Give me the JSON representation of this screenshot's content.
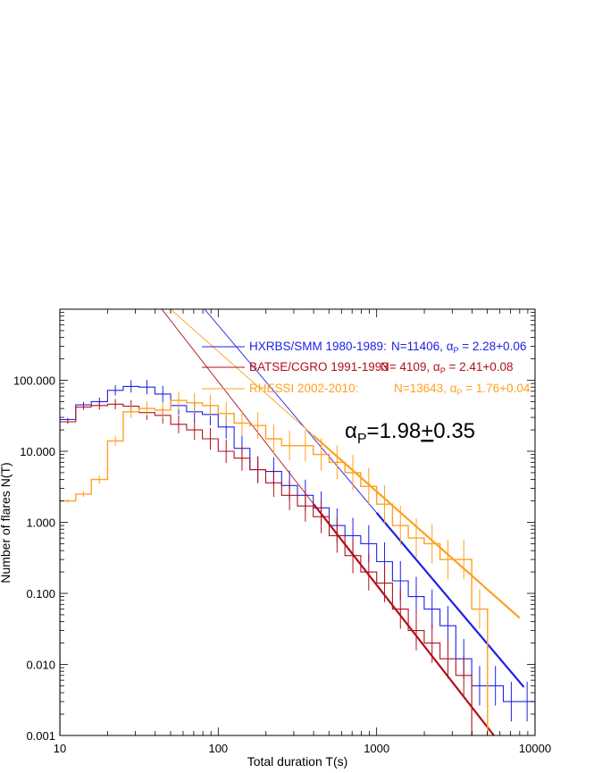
{
  "chart_data": {
    "type": "line",
    "title": "",
    "xlabel": "Total duration  T(s)",
    "ylabel": "Number of flares N(T)",
    "xscale": "log",
    "yscale": "log",
    "xlim": [
      10,
      10000
    ],
    "ylim": [
      0.001,
      1000
    ],
    "grid": false,
    "legend_position": "top-right",
    "x_ticks": [
      {
        "value": 10,
        "label": "10"
      },
      {
        "value": 100,
        "label": "100"
      },
      {
        "value": 1000,
        "label": "1000"
      },
      {
        "value": 10000,
        "label": "10000"
      }
    ],
    "y_ticks": [
      {
        "value": 0.001,
        "label": "0.001"
      },
      {
        "value": 0.01,
        "label": "0.010"
      },
      {
        "value": 0.1,
        "label": "0.100"
      },
      {
        "value": 1,
        "label": "1.000"
      },
      {
        "value": 10,
        "label": "10.000"
      },
      {
        "value": 100,
        "label": "100.000"
      }
    ],
    "annotation": {
      "symbol": "α",
      "subscript": "P",
      "text": "=1.98",
      "pm": "+",
      "pm_value": "0.35"
    },
    "series": [
      {
        "name": "HXRBS/SMM 1980-1989:",
        "stats_text": "N=11406,",
        "alpha_label": "α",
        "alpha_sub": "P",
        "alpha_value": " = 2.28+0.06",
        "color": "#2020e8",
        "bin_edges": [
          10,
          12.6,
          15.8,
          20,
          25.1,
          31.6,
          39.8,
          50.1,
          63.1,
          79.4,
          100,
          125.9,
          158.5,
          199.5,
          251.2,
          316.2,
          398.1,
          501.2,
          631,
          794.3,
          1000,
          1258.9,
          1584.9,
          1995.3,
          2511.9,
          3162.3,
          3981.1,
          5011.9,
          6309.6,
          7943.3,
          10000
        ],
        "values": [
          28,
          45,
          50,
          72,
          82,
          80,
          64,
          44,
          36,
          33,
          22,
          11,
          5.5,
          5.2,
          3.3,
          2.4,
          1.6,
          0.9,
          0.65,
          0.5,
          0.28,
          0.15,
          0.09,
          0.06,
          0.035,
          0.012,
          0.005,
          0.005,
          0.003,
          0.003
        ],
        "fit": {
          "x1": 82,
          "y1": 1000,
          "x2": 8500,
          "y2": 0.0048,
          "emphasis_from": 1000
        }
      },
      {
        "name": "BATSE/CGRO 1991-1993",
        "stats_text": "N= 4109,",
        "alpha_label": "α",
        "alpha_sub": "P",
        "alpha_value": " = 2.41+0.08",
        "color": "#b0101c",
        "bin_edges": [
          10,
          12.6,
          15.8,
          20,
          25.1,
          31.6,
          39.8,
          50.1,
          63.1,
          79.4,
          100,
          125.9,
          158.5,
          199.5,
          251.2,
          316.2,
          398.1,
          501.2,
          631,
          794.3,
          1000,
          1258.9,
          1584.9,
          1995.3,
          2511.9,
          3162.3,
          3981.1
        ],
        "values": [
          26,
          42,
          44,
          46,
          43,
          35,
          32,
          24,
          20,
          15,
          10,
          8,
          5.5,
          3.6,
          2.4,
          1.7,
          1.2,
          0.65,
          0.34,
          0.2,
          0.14,
          0.06,
          0.03,
          0.02,
          0.012,
          0.007
        ],
        "fit": {
          "x1": 44,
          "y1": 1000,
          "x2": 5500,
          "y2": 0.001,
          "emphasis_from": 400
        }
      },
      {
        "name": "RHESSI 2002-2010:",
        "stats_text": "N=13643,",
        "alpha_label": "α",
        "alpha_sub": "P",
        "alpha_value": " = 1.76+0.04",
        "color": "#ffa020",
        "bin_edges": [
          10,
          12.6,
          15.8,
          20,
          25.1,
          31.6,
          39.8,
          50.1,
          63.1,
          79.4,
          100,
          125.9,
          158.5,
          199.5,
          251.2,
          316.2,
          398.1,
          501.2,
          631,
          794.3,
          1000,
          1258.9,
          1584.9,
          1995.3,
          2511.9,
          3162.3,
          3981.1,
          5011.9
        ],
        "values": [
          2,
          2.5,
          4,
          14,
          36,
          40,
          38,
          52,
          48,
          44,
          34,
          25,
          23,
          15,
          12,
          12,
          9,
          7,
          5,
          3.2,
          1.8,
          0.9,
          0.6,
          0.5,
          0.3,
          0.3,
          0.06
        ],
        "fit": {
          "x1": 50,
          "y1": 1000,
          "x2": 8000,
          "y2": 0.045,
          "emphasis_from": 400
        }
      }
    ]
  }
}
